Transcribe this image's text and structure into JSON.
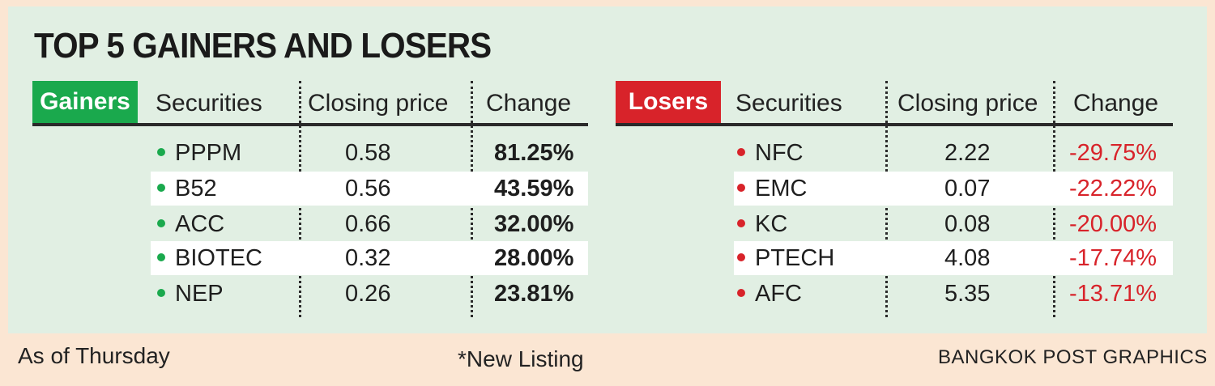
{
  "title": "TOP 5 GAINERS AND LOSERS",
  "columns": {
    "securities": "Securities",
    "closing_price": "Closing price",
    "change": "Change"
  },
  "gainers": {
    "label": "Gainers",
    "rows": [
      {
        "security": "PPPM",
        "price": "0.58",
        "change": "81.25%"
      },
      {
        "security": "B52",
        "price": "0.56",
        "change": "43.59%"
      },
      {
        "security": "ACC",
        "price": "0.66",
        "change": "32.00%"
      },
      {
        "security": "BIOTEC",
        "price": "0.32",
        "change": "28.00%"
      },
      {
        "security": "NEP",
        "price": "0.26",
        "change": "23.81%"
      }
    ]
  },
  "losers": {
    "label": "Losers",
    "rows": [
      {
        "security": "NFC",
        "price": "2.22",
        "change": "-29.75%"
      },
      {
        "security": "EMC",
        "price": "0.07",
        "change": "-22.22%"
      },
      {
        "security": "KC",
        "price": "0.08",
        "change": "-20.00%"
      },
      {
        "security": "PTECH",
        "price": "4.08",
        "change": "-17.74%"
      },
      {
        "security": "AFC",
        "price": "5.35",
        "change": "-13.71%"
      }
    ]
  },
  "footer": {
    "as_of": "As of Thursday",
    "note": "*New Listing",
    "credit": "BANGKOK POST GRAPHICS"
  },
  "colors": {
    "gain": "#1aa94d",
    "loss": "#d8232a",
    "panel": "#e1efe3",
    "background": "#fbe6d3"
  }
}
